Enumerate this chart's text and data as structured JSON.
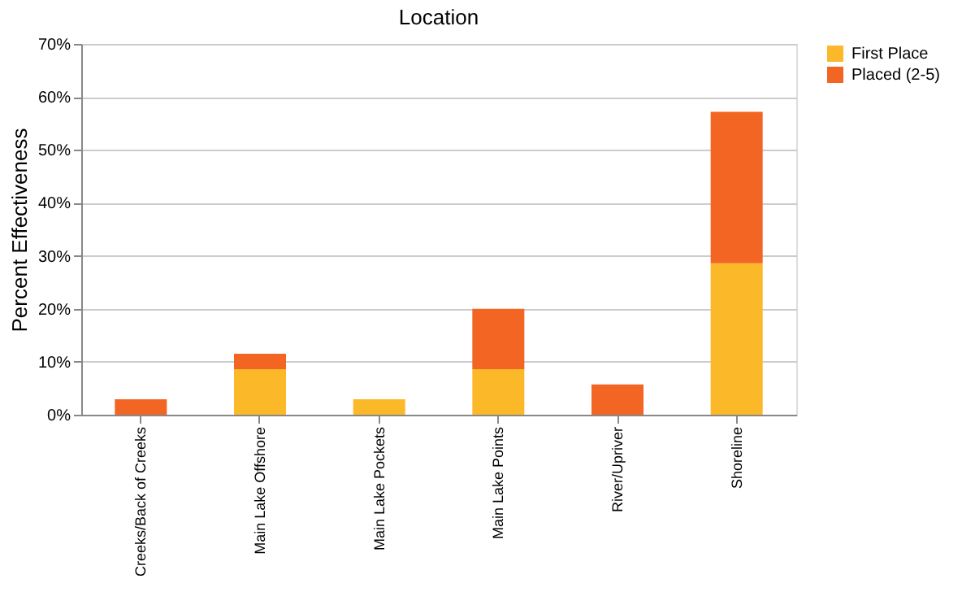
{
  "chart_data": {
    "type": "bar",
    "title": "Location",
    "ylabel": "Percent Effectiveness",
    "categories": [
      "Creeks/Back of Creeks",
      "Main Lake Offshore",
      "Main Lake Pockets",
      "Main Lake Points",
      "River/Upriver",
      "Shoreline"
    ],
    "series": [
      {
        "name": "First Place",
        "color": "#fbb829",
        "values": [
          0,
          8.6,
          2.9,
          8.6,
          0,
          28.6
        ]
      },
      {
        "name": "Placed (2-5)",
        "color": "#f26522",
        "values": [
          2.9,
          2.9,
          0,
          11.4,
          5.7,
          28.6
        ]
      }
    ],
    "stacked": true,
    "ylim": [
      0,
      70
    ],
    "yticks": [
      {
        "value": 0,
        "label": "0%"
      },
      {
        "value": 10,
        "label": "10%"
      },
      {
        "value": 20,
        "label": "20%"
      },
      {
        "value": 30,
        "label": "30%"
      },
      {
        "value": 40,
        "label": "40%"
      },
      {
        "value": 50,
        "label": "50%"
      },
      {
        "value": 60,
        "label": "60%"
      },
      {
        "value": 70,
        "label": "70%"
      }
    ],
    "grid": "y",
    "legend": "right"
  }
}
